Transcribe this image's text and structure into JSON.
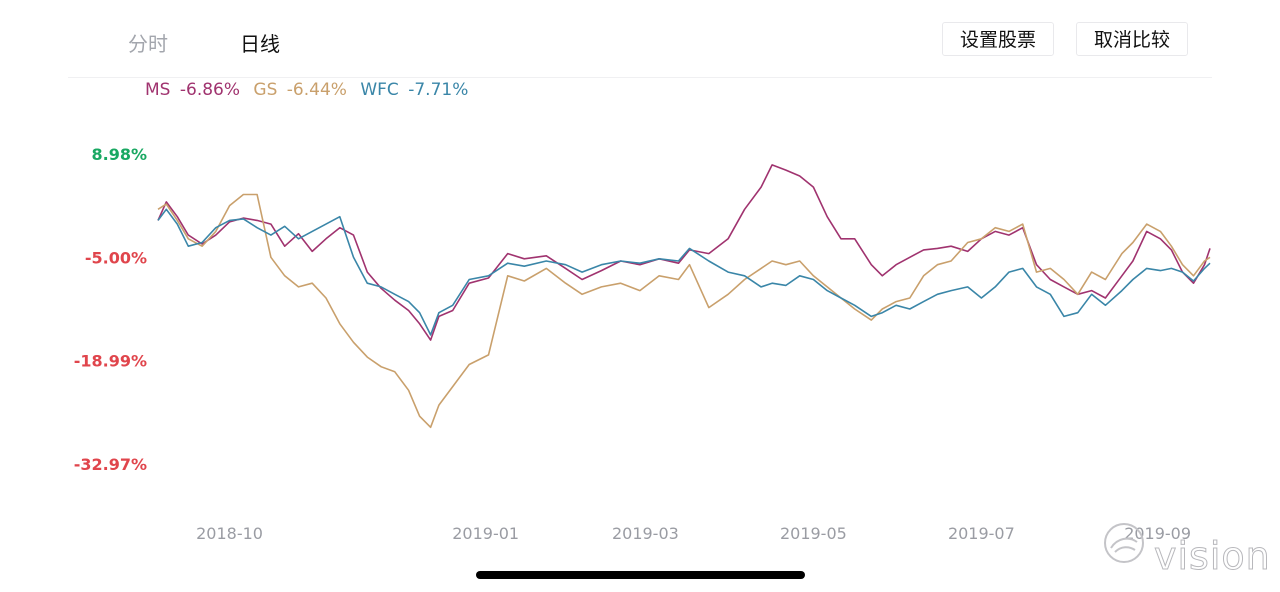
{
  "tabs": [
    {
      "label": "分时"
    },
    {
      "label": "日线"
    }
  ],
  "buttons": {
    "set_stocks": "设置股票",
    "cancel_compare": "取消比较"
  },
  "legend": [
    {
      "symbol": "MS",
      "change": "-6.86%",
      "color": "#a0336f"
    },
    {
      "symbol": "GS",
      "change": "-6.44%",
      "color": "#c9a06c"
    },
    {
      "symbol": "WFC",
      "change": "-7.71%",
      "color": "#3a86a8"
    }
  ],
  "watermark": {
    "text": "vision"
  },
  "chart_data": {
    "type": "line",
    "y_ticks": [
      {
        "label": "8.98%",
        "value": 8.98,
        "color": "#19a862"
      },
      {
        "label": "-5.00%",
        "value": -5.0,
        "color": "#e0454c"
      },
      {
        "label": "-18.99%",
        "value": -18.99,
        "color": "#e0454c"
      },
      {
        "label": "-32.97%",
        "value": -32.97,
        "color": "#e0454c"
      }
    ],
    "ylim": [
      -32.97,
      8.98
    ],
    "x_ticks": [
      {
        "label": "2018-10",
        "date": "2018-10-01"
      },
      {
        "label": "2019-01",
        "date": "2019-01-02"
      },
      {
        "label": "2019-03",
        "date": "2019-03-01"
      },
      {
        "label": "2019-05",
        "date": "2019-05-01"
      },
      {
        "label": "2019-07",
        "date": "2019-07-01"
      },
      {
        "label": "2019-09",
        "date": "2019-09-03"
      }
    ],
    "xlim": [
      "2018-09-17",
      "2019-10-04"
    ],
    "series": [
      {
        "name": "MS",
        "color": "#a0336f",
        "points": [
          [
            "2018-09-17",
            0.0
          ],
          [
            "2018-09-20",
            2.5
          ],
          [
            "2018-09-24",
            0.5
          ],
          [
            "2018-09-28",
            -2.0
          ],
          [
            "2018-10-03",
            -3.2
          ],
          [
            "2018-10-08",
            -2.0
          ],
          [
            "2018-10-13",
            -0.2
          ],
          [
            "2018-10-18",
            0.3
          ],
          [
            "2018-10-23",
            0.0
          ],
          [
            "2018-10-28",
            -0.5
          ],
          [
            "2018-11-02",
            -3.5
          ],
          [
            "2018-11-07",
            -1.8
          ],
          [
            "2018-11-12",
            -4.2
          ],
          [
            "2018-11-17",
            -2.5
          ],
          [
            "2018-11-22",
            -1.0
          ],
          [
            "2018-11-27",
            -2.0
          ],
          [
            "2018-12-02",
            -7.0
          ],
          [
            "2018-12-07",
            -9.2
          ],
          [
            "2018-12-12",
            -10.8
          ],
          [
            "2018-12-17",
            -12.2
          ],
          [
            "2018-12-21",
            -14.0
          ],
          [
            "2018-12-25",
            -16.2
          ],
          [
            "2018-12-28",
            -13.0
          ],
          [
            "2019-01-02",
            -12.2
          ],
          [
            "2019-01-08",
            -8.5
          ],
          [
            "2019-01-15",
            -7.8
          ],
          [
            "2019-01-22",
            -4.5
          ],
          [
            "2019-01-28",
            -5.2
          ],
          [
            "2019-02-05",
            -4.8
          ],
          [
            "2019-02-12",
            -6.5
          ],
          [
            "2019-02-18",
            -8.0
          ],
          [
            "2019-02-25",
            -6.8
          ],
          [
            "2019-03-04",
            -5.5
          ],
          [
            "2019-03-11",
            -6.0
          ],
          [
            "2019-03-18",
            -5.2
          ],
          [
            "2019-03-25",
            -5.8
          ],
          [
            "2019-03-29",
            -4.0
          ],
          [
            "2019-04-05",
            -4.5
          ],
          [
            "2019-04-12",
            -2.5
          ],
          [
            "2019-04-18",
            1.5
          ],
          [
            "2019-04-24",
            4.5
          ],
          [
            "2019-04-28",
            7.5
          ],
          [
            "2019-05-03",
            6.8
          ],
          [
            "2019-05-08",
            6.0
          ],
          [
            "2019-05-13",
            4.5
          ],
          [
            "2019-05-18",
            0.5
          ],
          [
            "2019-05-23",
            -2.5
          ],
          [
            "2019-05-28",
            -2.5
          ],
          [
            "2019-06-03",
            -6.0
          ],
          [
            "2019-06-07",
            -7.5
          ],
          [
            "2019-06-12",
            -6.0
          ],
          [
            "2019-06-17",
            -5.0
          ],
          [
            "2019-06-22",
            -4.0
          ],
          [
            "2019-06-27",
            -3.8
          ],
          [
            "2019-07-02",
            -3.5
          ],
          [
            "2019-07-08",
            -4.2
          ],
          [
            "2019-07-13",
            -2.5
          ],
          [
            "2019-07-18",
            -1.5
          ],
          [
            "2019-07-23",
            -2.0
          ],
          [
            "2019-07-28",
            -1.0
          ],
          [
            "2019-08-02",
            -6.0
          ],
          [
            "2019-08-07",
            -8.0
          ],
          [
            "2019-08-12",
            -9.0
          ],
          [
            "2019-08-17",
            -10.0
          ],
          [
            "2019-08-22",
            -9.5
          ],
          [
            "2019-08-27",
            -10.5
          ],
          [
            "2019-09-02",
            -7.5
          ],
          [
            "2019-09-06",
            -5.5
          ],
          [
            "2019-09-11",
            -1.5
          ],
          [
            "2019-09-16",
            -2.5
          ],
          [
            "2019-09-20",
            -4.0
          ],
          [
            "2019-09-24",
            -7.0
          ],
          [
            "2019-09-28",
            -8.5
          ],
          [
            "2019-10-02",
            -6.0
          ],
          [
            "2019-10-04",
            -3.8
          ]
        ]
      },
      {
        "name": "GS",
        "color": "#c9a06c",
        "points": [
          [
            "2018-09-17",
            1.5
          ],
          [
            "2018-09-20",
            2.2
          ],
          [
            "2018-09-24",
            0.0
          ],
          [
            "2018-09-28",
            -2.5
          ],
          [
            "2018-10-03",
            -3.5
          ],
          [
            "2018-10-08",
            -1.5
          ],
          [
            "2018-10-13",
            2.0
          ],
          [
            "2018-10-18",
            3.5
          ],
          [
            "2018-10-23",
            3.5
          ],
          [
            "2018-10-28",
            -5.0
          ],
          [
            "2018-11-02",
            -7.5
          ],
          [
            "2018-11-07",
            -9.0
          ],
          [
            "2018-11-12",
            -8.5
          ],
          [
            "2018-11-17",
            -10.5
          ],
          [
            "2018-11-22",
            -14.0
          ],
          [
            "2018-11-27",
            -16.5
          ],
          [
            "2018-12-02",
            -18.5
          ],
          [
            "2018-12-07",
            -19.8
          ],
          [
            "2018-12-12",
            -20.5
          ],
          [
            "2018-12-17",
            -23.0
          ],
          [
            "2018-12-21",
            -26.5
          ],
          [
            "2018-12-25",
            -28.0
          ],
          [
            "2018-12-28",
            -25.0
          ],
          [
            "2019-01-02",
            -22.5
          ],
          [
            "2019-01-08",
            -19.5
          ],
          [
            "2019-01-15",
            -18.2
          ],
          [
            "2019-01-22",
            -7.5
          ],
          [
            "2019-01-28",
            -8.2
          ],
          [
            "2019-02-05",
            -6.5
          ],
          [
            "2019-02-12",
            -8.5
          ],
          [
            "2019-02-18",
            -10.0
          ],
          [
            "2019-02-25",
            -9.0
          ],
          [
            "2019-03-04",
            -8.5
          ],
          [
            "2019-03-11",
            -9.5
          ],
          [
            "2019-03-18",
            -7.5
          ],
          [
            "2019-03-25",
            -8.0
          ],
          [
            "2019-03-29",
            -6.0
          ],
          [
            "2019-04-05",
            -11.8
          ],
          [
            "2019-04-12",
            -10.0
          ],
          [
            "2019-04-18",
            -8.0
          ],
          [
            "2019-04-24",
            -6.5
          ],
          [
            "2019-04-28",
            -5.5
          ],
          [
            "2019-05-03",
            -6.0
          ],
          [
            "2019-05-08",
            -5.5
          ],
          [
            "2019-05-13",
            -7.5
          ],
          [
            "2019-05-18",
            -9.0
          ],
          [
            "2019-05-23",
            -10.5
          ],
          [
            "2019-05-28",
            -12.0
          ],
          [
            "2019-06-03",
            -13.5
          ],
          [
            "2019-06-07",
            -12.0
          ],
          [
            "2019-06-12",
            -11.0
          ],
          [
            "2019-06-17",
            -10.5
          ],
          [
            "2019-06-22",
            -7.5
          ],
          [
            "2019-06-27",
            -6.0
          ],
          [
            "2019-07-02",
            -5.5
          ],
          [
            "2019-07-08",
            -3.0
          ],
          [
            "2019-07-13",
            -2.5
          ],
          [
            "2019-07-18",
            -1.0
          ],
          [
            "2019-07-23",
            -1.5
          ],
          [
            "2019-07-28",
            -0.5
          ],
          [
            "2019-08-02",
            -7.0
          ],
          [
            "2019-08-07",
            -6.5
          ],
          [
            "2019-08-12",
            -8.0
          ],
          [
            "2019-08-17",
            -10.0
          ],
          [
            "2019-08-22",
            -7.0
          ],
          [
            "2019-08-27",
            -8.0
          ],
          [
            "2019-09-02",
            -4.5
          ],
          [
            "2019-09-06",
            -3.0
          ],
          [
            "2019-09-11",
            -0.5
          ],
          [
            "2019-09-16",
            -1.5
          ],
          [
            "2019-09-20",
            -3.5
          ],
          [
            "2019-09-24",
            -6.0
          ],
          [
            "2019-09-28",
            -7.5
          ],
          [
            "2019-10-02",
            -5.5
          ],
          [
            "2019-10-04",
            -5.0
          ]
        ]
      },
      {
        "name": "WFC",
        "color": "#3a86a8",
        "points": [
          [
            "2018-09-17",
            0.0
          ],
          [
            "2018-09-20",
            1.5
          ],
          [
            "2018-09-24",
            -0.5
          ],
          [
            "2018-09-28",
            -3.5
          ],
          [
            "2018-10-03",
            -3.0
          ],
          [
            "2018-10-08",
            -1.0
          ],
          [
            "2018-10-13",
            0.0
          ],
          [
            "2018-10-18",
            0.2
          ],
          [
            "2018-10-23",
            -1.0
          ],
          [
            "2018-10-28",
            -2.0
          ],
          [
            "2018-11-02",
            -0.8
          ],
          [
            "2018-11-07",
            -2.5
          ],
          [
            "2018-11-12",
            -1.5
          ],
          [
            "2018-11-17",
            -0.5
          ],
          [
            "2018-11-22",
            0.5
          ],
          [
            "2018-11-27",
            -5.0
          ],
          [
            "2018-12-02",
            -8.5
          ],
          [
            "2018-12-07",
            -9.0
          ],
          [
            "2018-12-12",
            -10.0
          ],
          [
            "2018-12-17",
            -11.0
          ],
          [
            "2018-12-21",
            -12.5
          ],
          [
            "2018-12-25",
            -15.5
          ],
          [
            "2018-12-28",
            -12.5
          ],
          [
            "2019-01-02",
            -11.5
          ],
          [
            "2019-01-08",
            -8.0
          ],
          [
            "2019-01-15",
            -7.5
          ],
          [
            "2019-01-22",
            -5.8
          ],
          [
            "2019-01-28",
            -6.2
          ],
          [
            "2019-02-05",
            -5.5
          ],
          [
            "2019-02-12",
            -6.0
          ],
          [
            "2019-02-18",
            -7.0
          ],
          [
            "2019-02-25",
            -6.0
          ],
          [
            "2019-03-04",
            -5.5
          ],
          [
            "2019-03-11",
            -5.8
          ],
          [
            "2019-03-18",
            -5.2
          ],
          [
            "2019-03-25",
            -5.5
          ],
          [
            "2019-03-29",
            -3.8
          ],
          [
            "2019-04-05",
            -5.5
          ],
          [
            "2019-04-12",
            -7.0
          ],
          [
            "2019-04-18",
            -7.5
          ],
          [
            "2019-04-24",
            -9.0
          ],
          [
            "2019-04-28",
            -8.5
          ],
          [
            "2019-05-03",
            -8.8
          ],
          [
            "2019-05-08",
            -7.5
          ],
          [
            "2019-05-13",
            -8.0
          ],
          [
            "2019-05-18",
            -9.5
          ],
          [
            "2019-05-23",
            -10.5
          ],
          [
            "2019-05-28",
            -11.5
          ],
          [
            "2019-06-03",
            -13.0
          ],
          [
            "2019-06-07",
            -12.5
          ],
          [
            "2019-06-12",
            -11.5
          ],
          [
            "2019-06-17",
            -12.0
          ],
          [
            "2019-06-22",
            -11.0
          ],
          [
            "2019-06-27",
            -10.0
          ],
          [
            "2019-07-02",
            -9.5
          ],
          [
            "2019-07-08",
            -9.0
          ],
          [
            "2019-07-13",
            -10.5
          ],
          [
            "2019-07-18",
            -9.0
          ],
          [
            "2019-07-23",
            -7.0
          ],
          [
            "2019-07-28",
            -6.5
          ],
          [
            "2019-08-02",
            -9.0
          ],
          [
            "2019-08-07",
            -10.0
          ],
          [
            "2019-08-12",
            -13.0
          ],
          [
            "2019-08-17",
            -12.5
          ],
          [
            "2019-08-22",
            -10.0
          ],
          [
            "2019-08-27",
            -11.5
          ],
          [
            "2019-09-02",
            -9.5
          ],
          [
            "2019-09-06",
            -8.0
          ],
          [
            "2019-09-11",
            -6.5
          ],
          [
            "2019-09-16",
            -6.8
          ],
          [
            "2019-09-20",
            -6.5
          ],
          [
            "2019-09-24",
            -7.0
          ],
          [
            "2019-09-28",
            -8.2
          ],
          [
            "2019-10-02",
            -6.5
          ],
          [
            "2019-10-04",
            -5.8
          ]
        ]
      }
    ]
  }
}
